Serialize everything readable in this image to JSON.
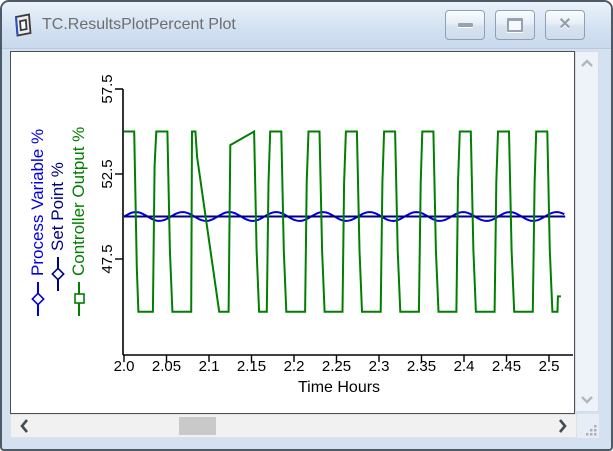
{
  "window": {
    "title": "TC.ResultsPlotPercent Plot",
    "buttons": {
      "minimize": "minimize",
      "maximize": "maximize",
      "close": "close"
    }
  },
  "colors": {
    "process_variable": "#0000dd",
    "set_point": "#000080",
    "controller_output": "#007f00",
    "axis": "#000000",
    "titlebar_text": "#6e6e6e"
  },
  "scrollbars": {
    "vertical": {
      "up": "scroll-up",
      "down": "scroll-down"
    },
    "horizontal": {
      "left": "scroll-left",
      "right": "scroll-right"
    }
  },
  "chart_data": {
    "type": "line",
    "title": "",
    "xlabel": "Time Hours",
    "ylabel": "",
    "x_ticks": [
      "2.0",
      "2.05",
      "2.1",
      "2.15",
      "2.2",
      "2.25",
      "2.3",
      "2.35",
      "2.4",
      "2.45",
      "2.5"
    ],
    "x_tick_values": [
      2.0,
      2.05,
      2.1,
      2.15,
      2.2,
      2.25,
      2.3,
      2.35,
      2.4,
      2.45,
      2.5
    ],
    "y_ticks": [
      "57.5",
      "52.5",
      "47.5"
    ],
    "y_tick_values": [
      57.5,
      52.5,
      47.5
    ],
    "x_range": [
      2.0,
      2.528
    ],
    "y_range": [
      41.8,
      57.5
    ],
    "grid": false,
    "legend_position": "left-rotated",
    "series": [
      {
        "id": "process-variable",
        "name": "Process Variable %",
        "color": "#0000dd",
        "marker": "diamond",
        "kind": "sine",
        "mean": 50,
        "amplitude": 0.26,
        "period_hours": 0.055,
        "peak_t": 2.014,
        "t_start": 2.0,
        "t_end": 2.519,
        "sample_step": 0.002
      },
      {
        "id": "set-point",
        "name": "Set Point %",
        "color": "#000080",
        "marker": "diamond",
        "kind": "constant",
        "value": 50,
        "t_start": 2.0,
        "t_end": 2.519
      },
      {
        "id": "controller-output",
        "name": "Controller Output %",
        "color": "#007f00",
        "marker": "square",
        "kind": "points",
        "points": [
          [
            2.0,
            55
          ],
          [
            2.012,
            55
          ],
          [
            2.015,
            47
          ],
          [
            2.017,
            44.4
          ],
          [
            2.034,
            44.4
          ],
          [
            2.036,
            53
          ],
          [
            2.038,
            55
          ],
          [
            2.051,
            55
          ],
          [
            2.054,
            48
          ],
          [
            2.057,
            44.4
          ],
          [
            2.079,
            44.4
          ],
          [
            2.08,
            55
          ],
          [
            2.084,
            55
          ],
          [
            2.086,
            53.5
          ],
          [
            2.112,
            44.4
          ],
          [
            2.123,
            44.4
          ],
          [
            2.125,
            54.2
          ],
          [
            2.153,
            55
          ],
          [
            2.156,
            48
          ],
          [
            2.159,
            44.4
          ],
          [
            2.168,
            44.4
          ],
          [
            2.17,
            52
          ],
          [
            2.172,
            55
          ],
          [
            2.185,
            55
          ],
          [
            2.188,
            48
          ],
          [
            2.191,
            44.4
          ],
          [
            2.213,
            44.4
          ],
          [
            2.215,
            52
          ],
          [
            2.217,
            55
          ],
          [
            2.23,
            55
          ],
          [
            2.233,
            48
          ],
          [
            2.236,
            44.4
          ],
          [
            2.257,
            44.4
          ],
          [
            2.259,
            52
          ],
          [
            2.261,
            55
          ],
          [
            2.274,
            55
          ],
          [
            2.277,
            48
          ],
          [
            2.28,
            44.4
          ],
          [
            2.302,
            44.4
          ],
          [
            2.304,
            52
          ],
          [
            2.306,
            55
          ],
          [
            2.319,
            55
          ],
          [
            2.322,
            48
          ],
          [
            2.325,
            44.4
          ],
          [
            2.347,
            44.4
          ],
          [
            2.349,
            52
          ],
          [
            2.351,
            55
          ],
          [
            2.364,
            55
          ],
          [
            2.367,
            48
          ],
          [
            2.37,
            44.4
          ],
          [
            2.391,
            44.4
          ],
          [
            2.393,
            52
          ],
          [
            2.395,
            55
          ],
          [
            2.408,
            55
          ],
          [
            2.411,
            48
          ],
          [
            2.414,
            44.4
          ],
          [
            2.436,
            44.4
          ],
          [
            2.438,
            52
          ],
          [
            2.44,
            55
          ],
          [
            2.453,
            55
          ],
          [
            2.456,
            48
          ],
          [
            2.459,
            44.4
          ],
          [
            2.481,
            44.4
          ],
          [
            2.483,
            52
          ],
          [
            2.485,
            55
          ],
          [
            2.498,
            55
          ],
          [
            2.501,
            48
          ],
          [
            2.504,
            44.4
          ],
          [
            2.51,
            44.4
          ],
          [
            2.5105,
            45.3
          ],
          [
            2.514,
            45.3
          ]
        ]
      }
    ]
  }
}
